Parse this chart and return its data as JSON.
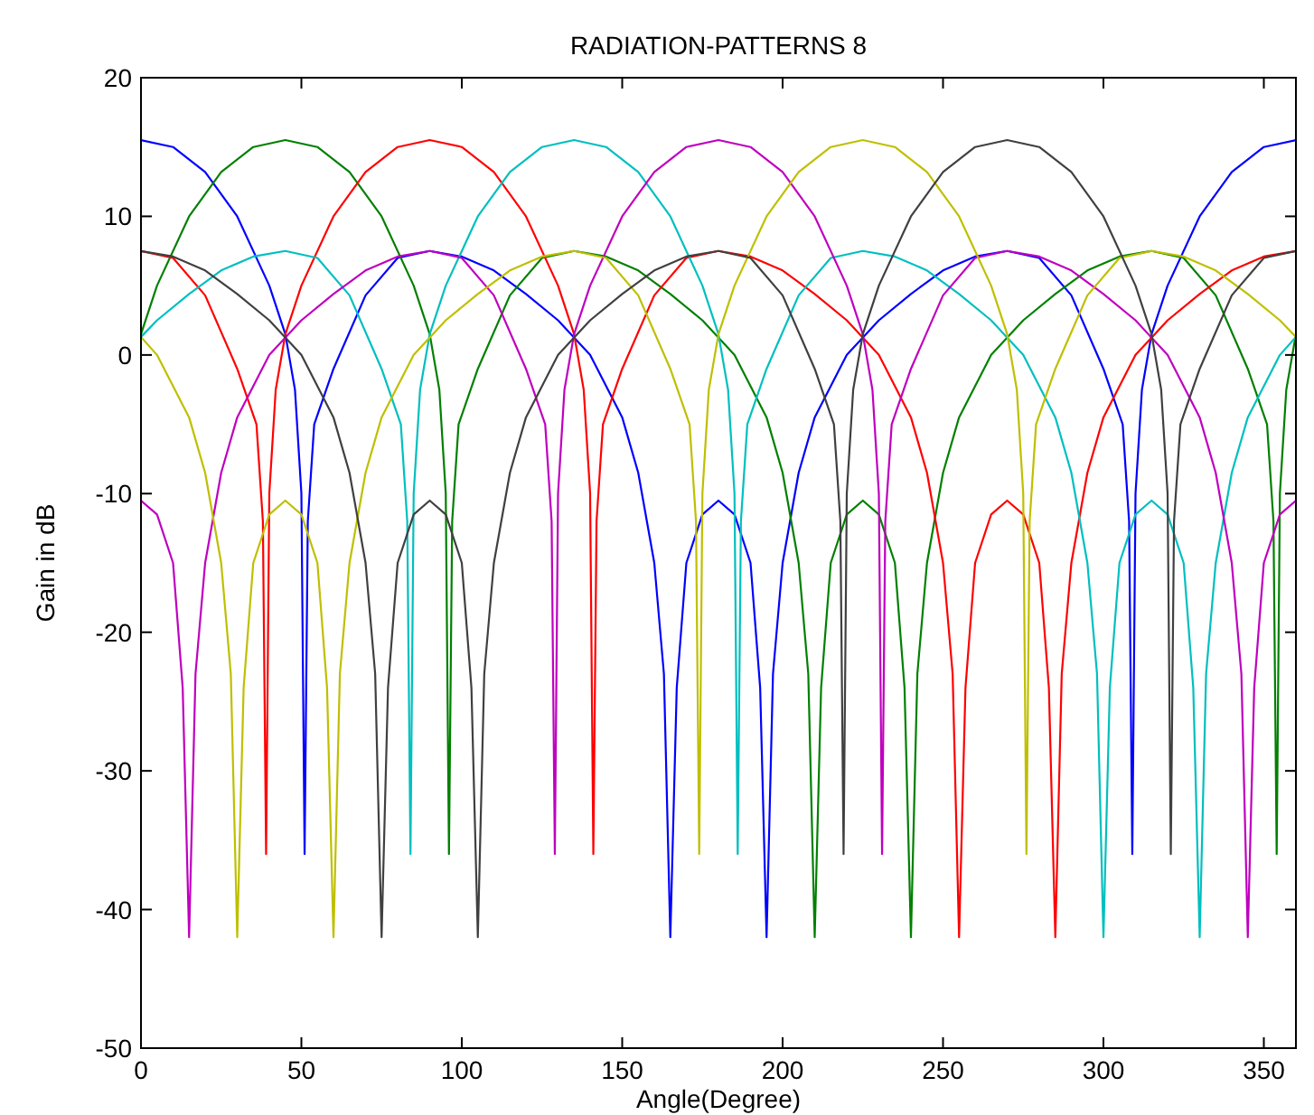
{
  "chart_data": {
    "type": "line",
    "title": "RADIATION-PATTERNS 8",
    "xlabel": "Angle(Degree)",
    "ylabel": "Gain in dB",
    "xlim": [
      0,
      360
    ],
    "ylim": [
      -50,
      20
    ],
    "xticks": [
      0,
      50,
      100,
      150,
      200,
      250,
      300,
      350
    ],
    "yticks": [
      -50,
      -40,
      -30,
      -20,
      -10,
      0,
      10,
      20
    ],
    "grid": false,
    "series": [
      {
        "color": "#0000ff",
        "x": [
          0,
          10,
          20,
          30,
          40,
          45,
          48,
          50,
          51,
          52,
          54,
          60,
          70,
          80,
          90,
          100,
          110,
          120,
          130,
          140,
          150,
          155,
          160,
          163,
          165,
          167,
          170,
          175,
          180,
          185,
          190,
          193,
          195,
          197,
          200,
          205,
          210,
          220,
          230,
          240,
          250,
          260,
          270,
          280,
          290,
          300,
          306,
          308,
          309,
          310,
          312,
          315,
          320,
          330,
          340,
          350,
          360
        ],
        "values": [
          15.5,
          15,
          13.2,
          10,
          5,
          1.5,
          -2.5,
          -10,
          -36,
          -12,
          -5,
          -1,
          4.3,
          7,
          7.5,
          7.1,
          6.1,
          4.4,
          2.5,
          0,
          -4.5,
          -8.5,
          -15,
          -23,
          -42,
          -24,
          -15,
          -11.5,
          -10.5,
          -11.5,
          -15,
          -24,
          -42,
          -23,
          -15,
          -8.5,
          -4.5,
          0,
          2.5,
          4.4,
          6.1,
          7.1,
          7.5,
          7,
          4.3,
          -1,
          -5,
          -12,
          -36,
          -10,
          -2.5,
          1.5,
          5,
          10,
          13.2,
          15,
          15.5
        ]
      },
      {
        "color": "#008000",
        "x": [
          0,
          5,
          15,
          25,
          35,
          45,
          55,
          65,
          75,
          85,
          90,
          93,
          95,
          96,
          97,
          99,
          105,
          115,
          125,
          135,
          145,
          155,
          165,
          175,
          185,
          195,
          200,
          205,
          208,
          210,
          212,
          215,
          220,
          225,
          230,
          235,
          238,
          240,
          242,
          245,
          250,
          255,
          265,
          275,
          285,
          295,
          305,
          315,
          325,
          335,
          345,
          351,
          353,
          354,
          355,
          357,
          360
        ],
        "values": [
          1.5,
          5,
          10,
          13.2,
          15,
          15.5,
          15,
          13.2,
          10,
          5,
          1.5,
          -2.5,
          -10,
          -36,
          -12,
          -5,
          -1,
          4.3,
          7,
          7.5,
          7.1,
          6.1,
          4.4,
          2.5,
          0,
          -4.5,
          -8.5,
          -15,
          -23,
          -42,
          -24,
          -15,
          -11.5,
          -10.5,
          -11.5,
          -15,
          -24,
          -42,
          -23,
          -15,
          -8.5,
          -4.5,
          0,
          2.5,
          4.4,
          6.1,
          7.1,
          7.5,
          7,
          4.3,
          -1,
          -5,
          -12,
          -36,
          -10,
          -2.5,
          1.5
        ]
      },
      {
        "color": "#ff0000",
        "x": [
          0,
          10,
          20,
          30,
          36,
          38,
          39,
          40,
          42,
          45,
          50,
          60,
          70,
          80,
          90,
          100,
          110,
          120,
          130,
          135,
          138,
          140,
          141,
          142,
          144,
          150,
          160,
          170,
          180,
          190,
          200,
          210,
          220,
          230,
          240,
          245,
          250,
          253,
          255,
          257,
          260,
          265,
          270,
          275,
          280,
          283,
          285,
          287,
          290,
          295,
          300,
          310,
          320,
          330,
          340,
          350,
          360
        ],
        "values": [
          7.5,
          7,
          4.3,
          -1,
          -5,
          -12,
          -36,
          -10,
          -2.5,
          1.5,
          5,
          10,
          13.2,
          15,
          15.5,
          15,
          13.2,
          10,
          5,
          1.5,
          -2.5,
          -10,
          -36,
          -12,
          -5,
          -1,
          4.3,
          7,
          7.5,
          7.1,
          6.1,
          4.4,
          2.5,
          0,
          -4.5,
          -8.5,
          -15,
          -23,
          -42,
          -24,
          -15,
          -11.5,
          -10.5,
          -11.5,
          -15,
          -24,
          -42,
          -23,
          -15,
          -8.5,
          -4.5,
          0,
          2.5,
          4.4,
          6.1,
          7.1,
          7.5
        ]
      },
      {
        "color": "#00bfbf",
        "x": [
          0,
          5,
          15,
          25,
          35,
          45,
          55,
          65,
          75,
          81,
          83,
          84,
          85,
          87,
          90,
          95,
          105,
          115,
          125,
          135,
          145,
          155,
          165,
          175,
          180,
          183,
          185,
          186,
          187,
          189,
          195,
          205,
          215,
          225,
          235,
          245,
          255,
          265,
          275,
          285,
          290,
          295,
          298,
          300,
          302,
          305,
          310,
          315,
          320,
          325,
          328,
          330,
          332,
          335,
          340,
          345,
          355,
          360
        ],
        "values": [
          1.3,
          2.5,
          4.4,
          6.1,
          7.1,
          7.5,
          7,
          4.3,
          -1,
          -5,
          -12,
          -36,
          -10,
          -2.5,
          1.5,
          5,
          10,
          13.2,
          15,
          15.5,
          15,
          13.2,
          10,
          5,
          1.5,
          -2.5,
          -10,
          -36,
          -12,
          -5,
          -1,
          4.3,
          7,
          7.5,
          7.1,
          6.1,
          4.4,
          2.5,
          0,
          -4.5,
          -8.5,
          -15,
          -23,
          -42,
          -24,
          -15,
          -11.5,
          -10.5,
          -11.5,
          -15,
          -24,
          -42,
          -23,
          -15,
          -8.5,
          -4.5,
          0,
          1.3
        ]
      },
      {
        "color": "#bf00bf",
        "x": [
          0,
          5,
          10,
          13,
          15,
          17,
          20,
          25,
          30,
          40,
          50,
          60,
          70,
          80,
          90,
          100,
          110,
          120,
          126,
          128,
          129,
          130,
          132,
          135,
          140,
          150,
          160,
          170,
          180,
          190,
          200,
          210,
          220,
          225,
          228,
          230,
          231,
          232,
          234,
          240,
          250,
          260,
          270,
          280,
          290,
          300,
          310,
          320,
          330,
          335,
          340,
          343,
          345,
          347,
          350,
          355,
          360
        ],
        "values": [
          -10.5,
          -11.5,
          -15,
          -24,
          -42,
          -23,
          -15,
          -8.5,
          -4.5,
          0,
          2.5,
          4.4,
          6.1,
          7.1,
          7.5,
          7,
          4.3,
          -1,
          -5,
          -12,
          -36,
          -10,
          -2.5,
          1.5,
          5,
          10,
          13.2,
          15,
          15.5,
          15,
          13.2,
          10,
          5,
          1.5,
          -2.5,
          -10,
          -36,
          -12,
          -5,
          -1,
          4.3,
          7,
          7.5,
          7.1,
          6.1,
          4.4,
          2.5,
          0,
          -4.5,
          -8.5,
          -15,
          -23,
          -42,
          -24,
          -15,
          -11.5,
          -10.5
        ]
      },
      {
        "color": "#bfbf00",
        "x": [
          0,
          5,
          15,
          20,
          25,
          28,
          30,
          32,
          35,
          40,
          45,
          50,
          55,
          58,
          60,
          62,
          65,
          70,
          75,
          85,
          95,
          105,
          115,
          125,
          135,
          145,
          155,
          165,
          171,
          173,
          174,
          175,
          177,
          180,
          185,
          195,
          205,
          215,
          225,
          235,
          245,
          255,
          265,
          270,
          273,
          275,
          276,
          277,
          279,
          285,
          295,
          305,
          315,
          325,
          335,
          345,
          355,
          360
        ],
        "values": [
          1.3,
          0,
          -4.5,
          -8.5,
          -15,
          -23,
          -42,
          -24,
          -15,
          -11.5,
          -10.5,
          -11.5,
          -15,
          -24,
          -42,
          -23,
          -15,
          -8.5,
          -4.5,
          0,
          2.5,
          4.4,
          6.1,
          7.1,
          7.5,
          7,
          4.3,
          -1,
          -5,
          -12,
          -36,
          -10,
          -2.5,
          1.5,
          5,
          10,
          13.2,
          15,
          15.5,
          15,
          13.2,
          10,
          5,
          1.5,
          -2.5,
          -10,
          -36,
          -12,
          -5,
          -1,
          4.3,
          7,
          7.5,
          7.1,
          6.1,
          4.4,
          2.5,
          1.3
        ]
      },
      {
        "color": "#404040",
        "x": [
          0,
          10,
          20,
          30,
          40,
          50,
          60,
          65,
          70,
          73,
          75,
          77,
          80,
          85,
          90,
          95,
          100,
          103,
          105,
          107,
          110,
          115,
          120,
          130,
          140,
          150,
          160,
          170,
          180,
          190,
          200,
          210,
          216,
          218,
          219,
          220,
          222,
          225,
          230,
          240,
          250,
          260,
          270,
          280,
          290,
          300,
          310,
          315,
          318,
          320,
          321,
          322,
          324,
          330,
          340,
          350,
          360
        ],
        "values": [
          7.5,
          7.1,
          6.1,
          4.4,
          2.5,
          0,
          -4.5,
          -8.5,
          -15,
          -23,
          -42,
          -24,
          -15,
          -11.5,
          -10.5,
          -11.5,
          -15,
          -24,
          -42,
          -23,
          -15,
          -8.5,
          -4.5,
          0,
          2.5,
          4.4,
          6.1,
          7.1,
          7.5,
          7,
          4.3,
          -1,
          -5,
          -12,
          -36,
          -10,
          -2.5,
          1.5,
          5,
          10,
          13.2,
          15,
          15.5,
          15,
          13.2,
          10,
          5,
          1.5,
          -2.5,
          -10,
          -36,
          -12,
          -5,
          -1,
          4.3,
          7,
          7.5
        ]
      }
    ]
  }
}
